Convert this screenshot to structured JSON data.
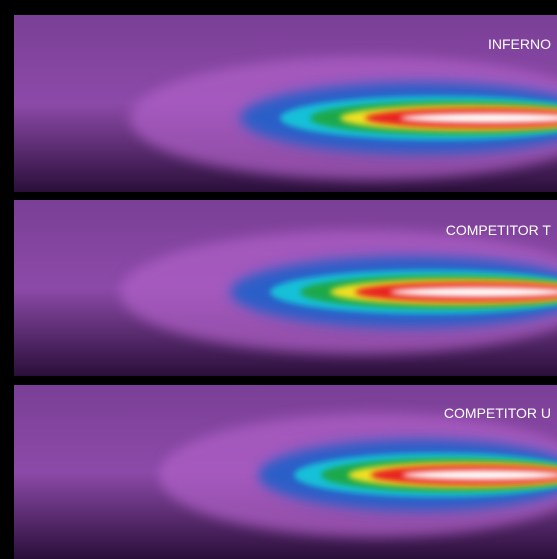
{
  "panels": [
    {
      "label": "INFERNO"
    },
    {
      "label": "COMPETITOR T"
    },
    {
      "label": "COMPETITOR U"
    }
  ]
}
